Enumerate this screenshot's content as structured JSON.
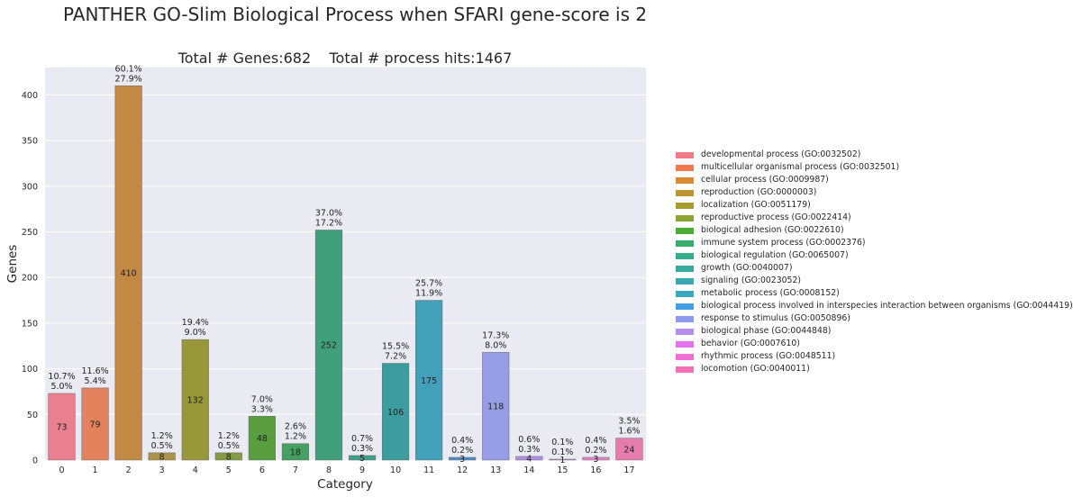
{
  "figure": {
    "suptitle": "PANTHER GO-Slim Biological Process when SFARI gene-score is 2"
  },
  "chart_data": {
    "type": "bar",
    "title": "Total # Genes:682    Total # process hits:1467",
    "xlabel": "Category",
    "ylabel": "Genes",
    "ylim": [
      0,
      430
    ],
    "yticks": [
      0,
      50,
      100,
      150,
      200,
      250,
      300,
      350,
      400
    ],
    "grid": true,
    "legend_position": "right",
    "categories": [
      "0",
      "1",
      "2",
      "3",
      "4",
      "5",
      "6",
      "7",
      "8",
      "9",
      "10",
      "11",
      "12",
      "13",
      "14",
      "15",
      "16",
      "17"
    ],
    "values": [
      73,
      79,
      410,
      8,
      132,
      8,
      48,
      18,
      252,
      5,
      106,
      175,
      3,
      118,
      4,
      1,
      3,
      24
    ],
    "pct_genes": [
      "10.7%",
      "11.6%",
      "60.1%",
      "1.2%",
      "19.4%",
      "1.2%",
      "7.0%",
      "2.6%",
      "37.0%",
      "0.7%",
      "15.5%",
      "25.7%",
      "0.4%",
      "17.3%",
      "0.6%",
      "0.1%",
      "0.4%",
      "3.5%"
    ],
    "pct_hits": [
      "5.0%",
      "5.4%",
      "27.9%",
      "0.5%",
      "9.0%",
      "0.5%",
      "3.3%",
      "1.2%",
      "17.2%",
      "0.3%",
      "7.2%",
      "11.9%",
      "0.2%",
      "8.0%",
      "0.3%",
      "0.1%",
      "0.2%",
      "1.6%"
    ],
    "colors": [
      "#e8808f",
      "#e4825d",
      "#c28a45",
      "#ab944a",
      "#989739",
      "#849b43",
      "#5a9f3f",
      "#45a061",
      "#40a07e",
      "#3fa08d",
      "#3c9c9e",
      "#43a0bb",
      "#4f8fc9",
      "#979ee6",
      "#b38fe5",
      "#d38ce3",
      "#e385c8",
      "#e47cac"
    ],
    "legend": [
      {
        "label": "developmental process (GO:0032502)",
        "color": "#f37a88"
      },
      {
        "label": "multicellular organismal process (GO:0032501)",
        "color": "#f2794f"
      },
      {
        "label": "cellular process (GO:0009987)",
        "color": "#da8a31"
      },
      {
        "label": "reproduction (GO:0000003)",
        "color": "#bf9434"
      },
      {
        "label": "localization (GO:0051179)",
        "color": "#a89c30"
      },
      {
        "label": "reproductive process (GO:0022414)",
        "color": "#8da536"
      },
      {
        "label": "biological adhesion (GO:0022610)",
        "color": "#4aae34"
      },
      {
        "label": "immune system process (GO:0002376)",
        "color": "#37ad6a"
      },
      {
        "label": "biological regulation (GO:0065007)",
        "color": "#36ad8b"
      },
      {
        "label": "growth (GO:0040007)",
        "color": "#37ab9e"
      },
      {
        "label": "signaling (GO:0023052)",
        "color": "#38a9b0"
      },
      {
        "label": "metabolic process (GO:0008152)",
        "color": "#3ba6c4"
      },
      {
        "label": "biological process involved in interspecies interaction between organisms (GO:0044419)",
        "color": "#42a1e4"
      },
      {
        "label": "response to stimulus (GO:0050896)",
        "color": "#8c9aef"
      },
      {
        "label": "biological phase (GO:0044848)",
        "color": "#b68cee"
      },
      {
        "label": "behavior (GO:0007610)",
        "color": "#e572ee"
      },
      {
        "label": "rhythmic process (GO:0048511)",
        "color": "#f16ed6"
      },
      {
        "label": "locomotion (GO:0040011)",
        "color": "#f46fb5"
      }
    ]
  }
}
